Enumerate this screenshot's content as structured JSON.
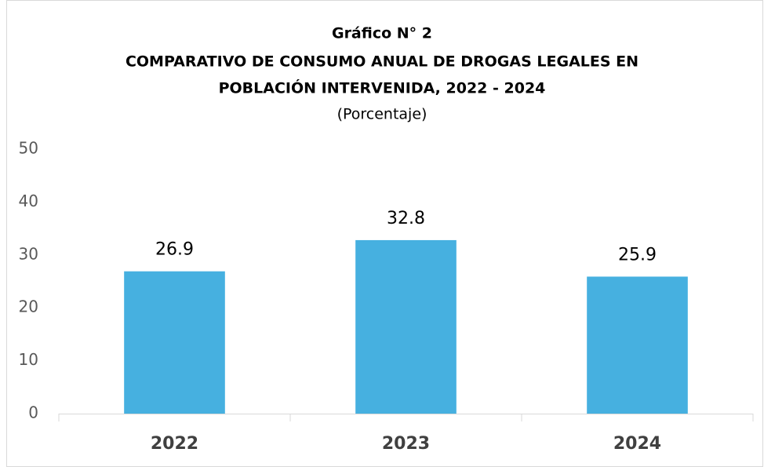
{
  "chart_data": {
    "type": "bar",
    "title": [
      "Gráfico N° 2",
      "COMPARATIVO DE CONSUMO ANUAL DE DROGAS LEGALES EN",
      "POBLACIÓN INTERVENIDA, 2022 - 2024"
    ],
    "subtitle": "(Porcentaje)",
    "categories": [
      "2022",
      "2023",
      "2024"
    ],
    "values": [
      26.9,
      32.8,
      25.9
    ],
    "color": "#46b0e0",
    "ylim": [
      0,
      50
    ],
    "yticks": [
      0,
      10,
      20,
      30,
      40,
      50
    ],
    "grid": false
  }
}
